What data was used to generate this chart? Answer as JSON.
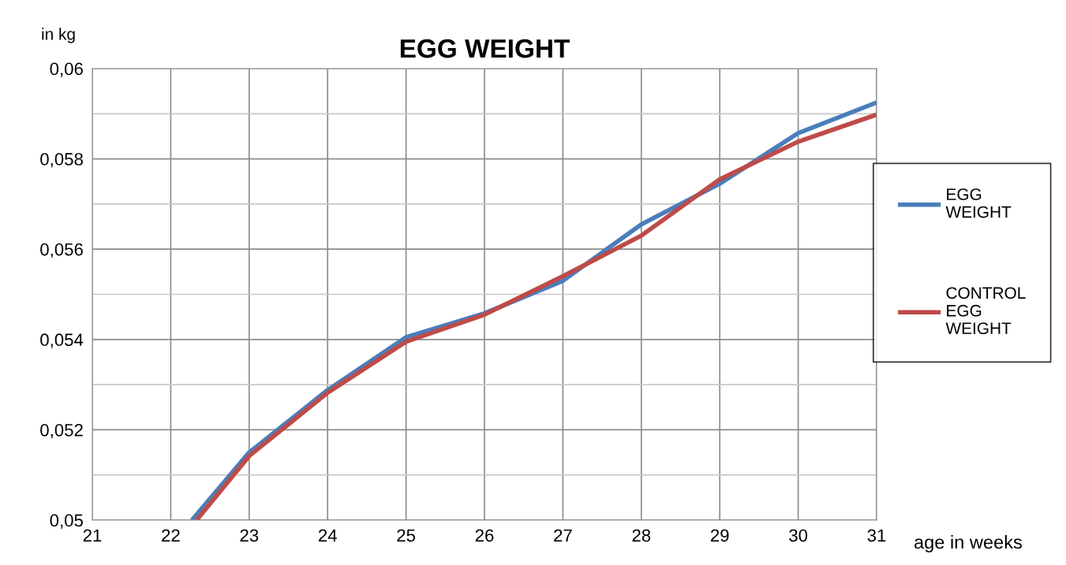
{
  "chart_data": {
    "type": "line",
    "title": "EGG WEIGHT",
    "xlabel": "age in weeks",
    "ylabel": "in kg",
    "xlim": [
      21,
      31
    ],
    "xticks": [
      21,
      22,
      23,
      24,
      25,
      26,
      27,
      28,
      29,
      30,
      31
    ],
    "ylim": [
      0.05,
      0.06
    ],
    "yticks": [
      {
        "value": 0.05,
        "label": "0,05"
      },
      {
        "value": 0.051,
        "label": null
      },
      {
        "value": 0.052,
        "label": "0,052"
      },
      {
        "value": 0.053,
        "label": null
      },
      {
        "value": 0.054,
        "label": "0,054"
      },
      {
        "value": 0.055,
        "label": null
      },
      {
        "value": 0.056,
        "label": "0,056"
      },
      {
        "value": 0.057,
        "label": null
      },
      {
        "value": 0.058,
        "label": "0,058"
      },
      {
        "value": 0.059,
        "label": null
      },
      {
        "value": 0.06,
        "label": "0,06"
      }
    ],
    "grid": true,
    "legend": "right",
    "marker": "none",
    "line_style": "solid",
    "series": [
      {
        "name": "EGG WEIGHT",
        "color": "#4a7ebb",
        "x": [
          22.27,
          23,
          24,
          25,
          26,
          27,
          28,
          29,
          30,
          31
        ],
        "values": [
          0.05,
          0.0515,
          0.05288,
          0.05405,
          0.05458,
          0.0553,
          0.05655,
          0.05745,
          0.05857,
          0.05925
        ]
      },
      {
        "name": "CONTROL EGG WEIGHT",
        "color": "#be4b48",
        "x": [
          22.33,
          23,
          24,
          25,
          26,
          27,
          28,
          29,
          30,
          31
        ],
        "values": [
          0.05,
          0.05142,
          0.05282,
          0.05395,
          0.05455,
          0.0554,
          0.0563,
          0.05755,
          0.05838,
          0.05898
        ]
      }
    ]
  }
}
